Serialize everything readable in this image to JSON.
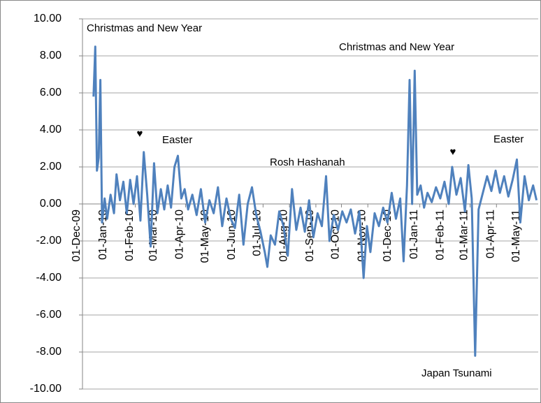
{
  "chart_data": {
    "type": "line",
    "x": [
      "2009-12-14",
      "2009-12-16",
      "2009-12-18",
      "2009-12-20",
      "2009-12-22",
      "2009-12-24",
      "2009-12-27",
      "2009-12-30",
      "2010-01-03",
      "2010-01-07",
      "2010-01-10",
      "2010-01-14",
      "2010-01-18",
      "2010-01-22",
      "2010-01-26",
      "2010-01-30",
      "2010-02-03",
      "2010-02-07",
      "2010-02-11",
      "2010-02-15",
      "2010-02-19",
      "2010-02-23",
      "2010-02-27",
      "2010-03-03",
      "2010-03-07",
      "2010-03-11",
      "2010-03-15",
      "2010-03-19",
      "2010-03-23",
      "2010-03-27",
      "2010-03-31",
      "2010-04-04",
      "2010-04-09",
      "2010-04-14",
      "2010-04-19",
      "2010-04-24",
      "2010-04-29",
      "2010-05-04",
      "2010-05-09",
      "2010-05-14",
      "2010-05-19",
      "2010-05-24",
      "2010-05-29",
      "2010-06-03",
      "2010-06-08",
      "2010-06-13",
      "2010-06-18",
      "2010-06-23",
      "2010-06-28",
      "2010-07-03",
      "2010-07-06",
      "2010-07-10",
      "2010-07-15",
      "2010-07-20",
      "2010-07-25",
      "2010-07-30",
      "2010-08-04",
      "2010-08-09",
      "2010-08-14",
      "2010-08-19",
      "2010-08-24",
      "2010-08-29",
      "2010-09-03",
      "2010-09-08",
      "2010-09-13",
      "2010-09-17",
      "2010-09-22",
      "2010-09-27",
      "2010-10-02",
      "2010-10-07",
      "2010-10-12",
      "2010-10-17",
      "2010-10-22",
      "2010-10-27",
      "2010-10-31",
      "2010-11-04",
      "2010-11-09",
      "2010-11-14",
      "2010-11-19",
      "2010-11-24",
      "2010-11-29",
      "2010-12-04",
      "2010-12-09",
      "2010-12-13",
      "2010-12-17",
      "2010-12-20",
      "2010-12-23",
      "2010-12-26",
      "2010-12-29",
      "2011-01-02",
      "2011-01-06",
      "2011-01-10",
      "2011-01-15",
      "2011-01-20",
      "2011-01-25",
      "2011-01-30",
      "2011-02-04",
      "2011-02-08",
      "2011-02-13",
      "2011-02-18",
      "2011-02-23",
      "2011-02-27",
      "2011-03-03",
      "2011-03-07",
      "2011-03-11",
      "2011-03-16",
      "2011-03-21",
      "2011-03-26",
      "2011-03-31",
      "2011-04-05",
      "2011-04-10",
      "2011-04-15",
      "2011-04-20",
      "2011-04-25",
      "2011-04-29",
      "2011-05-04",
      "2011-05-09",
      "2011-05-14",
      "2011-05-18"
    ],
    "series": [
      {
        "color": "#4f81bd",
        "values": [
          5.8,
          8.5,
          1.8,
          2.5,
          6.7,
          -1.0,
          0.3,
          -0.8,
          0.5,
          -0.5,
          1.6,
          0.2,
          1.2,
          -0.5,
          1.3,
          0.0,
          1.5,
          -0.9,
          2.8,
          0.5,
          -2.3,
          2.2,
          -0.5,
          0.8,
          -0.3,
          1.0,
          -0.2,
          2.0,
          2.6,
          0.3,
          0.8,
          -0.3,
          0.5,
          -0.6,
          0.8,
          -1.0,
          0.2,
          -0.5,
          0.9,
          -1.2,
          0.3,
          -0.8,
          -1.3,
          0.5,
          -2.2,
          0.0,
          0.9,
          -0.6,
          -1.5,
          -2.6,
          -3.4,
          -1.7,
          -2.2,
          -0.4,
          -1.2,
          -2.8,
          0.8,
          -1.4,
          -0.2,
          -1.5,
          0.2,
          -1.8,
          -0.5,
          -1.2,
          1.5,
          -2.0,
          -0.6,
          -1.4,
          -0.4,
          -1.0,
          -0.3,
          -1.6,
          -0.4,
          -4.0,
          -1.2,
          -2.6,
          -0.5,
          -1.2,
          -0.2,
          -1.0,
          0.6,
          -0.8,
          0.3,
          -3.1,
          1.0,
          6.7,
          0.0,
          7.2,
          0.5,
          1.0,
          -0.2,
          0.6,
          0.1,
          0.9,
          0.3,
          1.2,
          0.0,
          2.0,
          0.5,
          1.4,
          -0.4,
          2.1,
          0.3,
          -8.2,
          -0.3,
          0.6,
          1.5,
          0.7,
          1.8,
          0.6,
          1.5,
          0.4,
          1.3,
          2.4,
          -1.0,
          1.5,
          0.2,
          1.0,
          0.2
        ]
      }
    ],
    "xlim": [
      "2009-12-01",
      "2011-05-20"
    ],
    "xticks": [
      {
        "value": "2009-12-01",
        "label": "01-Dec-09"
      },
      {
        "value": "2010-01-01",
        "label": "01-Jan-10"
      },
      {
        "value": "2010-02-01",
        "label": "01-Feb-10"
      },
      {
        "value": "2010-03-01",
        "label": "01-Mar-10"
      },
      {
        "value": "2010-04-01",
        "label": "01-Apr-10"
      },
      {
        "value": "2010-05-01",
        "label": "01-May-10"
      },
      {
        "value": "2010-06-01",
        "label": "01-Jun-10"
      },
      {
        "value": "2010-07-01",
        "label": "01-Jul-10"
      },
      {
        "value": "2010-08-01",
        "label": "01-Aug-10"
      },
      {
        "value": "2010-09-01",
        "label": "01-Sep-10"
      },
      {
        "value": "2010-10-01",
        "label": "01-Oct-10"
      },
      {
        "value": "2010-11-01",
        "label": "01-Nov-10"
      },
      {
        "value": "2010-12-01",
        "label": "01-Dec-10"
      },
      {
        "value": "2011-01-01",
        "label": "01-Jan-11"
      },
      {
        "value": "2011-02-01",
        "label": "01-Feb-11"
      },
      {
        "value": "2011-03-01",
        "label": "01-Mar-11"
      },
      {
        "value": "2011-04-01",
        "label": "01-Apr-11"
      },
      {
        "value": "2011-05-01",
        "label": "01-May-11"
      }
    ],
    "ylim": [
      -10,
      10
    ],
    "yticks": [
      {
        "value": 10,
        "label": "10.00"
      },
      {
        "value": 8,
        "label": "8.00"
      },
      {
        "value": 6,
        "label": "6.00"
      },
      {
        "value": 4,
        "label": "4.00"
      },
      {
        "value": 2,
        "label": "2.00"
      },
      {
        "value": 0,
        "label": "0.00"
      },
      {
        "value": -2,
        "label": "-2.00"
      },
      {
        "value": -4,
        "label": "-4.00"
      },
      {
        "value": -6,
        "label": "-6.00"
      },
      {
        "value": -8,
        "label": "-8.00"
      },
      {
        "value": -10,
        "label": "-10.00"
      }
    ],
    "grid": true,
    "annotations": [
      "Christmas and New Year",
      "Christmas and New Year",
      "♥",
      "Easter",
      "Rosh Hashanah",
      "♥",
      "Easter",
      "Japan Tsunami"
    ]
  }
}
